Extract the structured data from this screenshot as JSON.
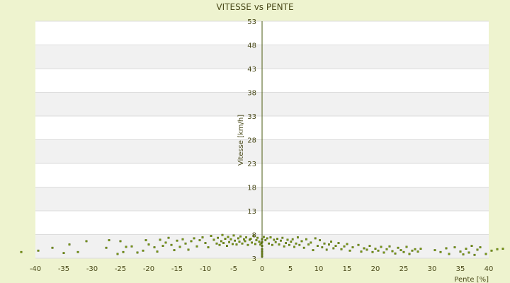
{
  "chart_data": {
    "type": "scatter",
    "title": "VITESSE vs PENTE",
    "xlabel": "Pente [%]",
    "ylabel": "Vitesse [km/h]",
    "xlim": [
      -40,
      40
    ],
    "ylim": [
      3,
      53
    ],
    "x_ticks": [
      -40,
      -35,
      -30,
      -25,
      -20,
      -15,
      -10,
      -5,
      0,
      5,
      10,
      15,
      20,
      25,
      30,
      35,
      40
    ],
    "y_ticks": [
      3,
      8,
      13,
      18,
      23,
      28,
      33,
      38,
      43,
      48,
      53
    ],
    "grid": true,
    "legend": "none",
    "colors": {
      "background": "#eef3cf",
      "plot": "#ffffff",
      "band": "#f1f1f1",
      "marker": "#7a9a10",
      "marker_edge": "#3d5200",
      "axis": "#4a5a10"
    },
    "points": [
      [
        -42.5,
        4.3
      ],
      [
        -39.5,
        4.6
      ],
      [
        -37,
        5.2
      ],
      [
        -35,
        4.1
      ],
      [
        -34,
        5.9
      ],
      [
        -32.5,
        4.3
      ],
      [
        -31,
        6.6
      ],
      [
        -27.5,
        5.2
      ],
      [
        -27,
        6.8
      ],
      [
        -25.5,
        3.9
      ],
      [
        -25,
        6.6
      ],
      [
        -24.5,
        4.3
      ],
      [
        -24,
        5.4
      ],
      [
        -23,
        5.5
      ],
      [
        -22,
        4.2
      ],
      [
        -21,
        4.6
      ],
      [
        -20.5,
        6.8
      ],
      [
        -20,
        5.9
      ],
      [
        -19,
        5.3
      ],
      [
        -18.5,
        4.4
      ],
      [
        -18,
        6.9
      ],
      [
        -17.5,
        5.6
      ],
      [
        -17,
        6.3
      ],
      [
        -16.5,
        7.3
      ],
      [
        -16,
        5.8
      ],
      [
        -15.5,
        4.7
      ],
      [
        -15,
        6.7
      ],
      [
        -14.5,
        5.4
      ],
      [
        -14,
        7.0
      ],
      [
        -13.5,
        6.1
      ],
      [
        -13,
        4.8
      ],
      [
        -12.5,
        6.6
      ],
      [
        -12,
        7.2
      ],
      [
        -11.5,
        5.5
      ],
      [
        -11,
        6.8
      ],
      [
        -10.5,
        7.4
      ],
      [
        -10,
        6.2
      ],
      [
        -9.5,
        5.3
      ],
      [
        -9,
        7.7
      ],
      [
        -8.5,
        6.9
      ],
      [
        -8,
        6.1
      ],
      [
        -7.8,
        7.3
      ],
      [
        -7.5,
        5.8
      ],
      [
        -7.2,
        6.6
      ],
      [
        -7,
        7.9
      ],
      [
        -6.8,
        6.2
      ],
      [
        -6.5,
        7.1
      ],
      [
        -6.2,
        5.6
      ],
      [
        -6,
        7.5
      ],
      [
        -5.8,
        6.4
      ],
      [
        -5.5,
        7.0
      ],
      [
        -5.2,
        6.0
      ],
      [
        -5,
        7.8
      ],
      [
        -4.8,
        6.7
      ],
      [
        -4.5,
        5.9
      ],
      [
        -4.2,
        7.2
      ],
      [
        -4,
        6.5
      ],
      [
        -3.8,
        7.6
      ],
      [
        -3.5,
        6.1
      ],
      [
        -3.2,
        7.0
      ],
      [
        -3,
        6.6
      ],
      [
        -2.8,
        7.4
      ],
      [
        -2.5,
        5.8
      ],
      [
        -2.2,
        6.9
      ],
      [
        -2,
        7.1
      ],
      [
        -1.8,
        6.3
      ],
      [
        -1.5,
        7.7
      ],
      [
        -1.2,
        6.0
      ],
      [
        -1,
        6.8
      ],
      [
        -0.8,
        7.3
      ],
      [
        -0.5,
        6.5
      ],
      [
        -0.3,
        5.9
      ],
      [
        -0.1,
        6.2
      ],
      [
        0,
        7.0
      ],
      [
        0,
        6.4
      ],
      [
        0,
        5.6
      ],
      [
        0,
        4.9
      ],
      [
        0,
        4.4
      ],
      [
        0,
        3.9
      ],
      [
        0,
        3.4
      ],
      [
        0.3,
        7.5
      ],
      [
        0.6,
        6.8
      ],
      [
        0.9,
        7.2
      ],
      [
        1.2,
        6.1
      ],
      [
        1.5,
        7.4
      ],
      [
        1.8,
        5.8
      ],
      [
        2.1,
        6.9
      ],
      [
        2.4,
        6.4
      ],
      [
        2.7,
        7.1
      ],
      [
        3,
        5.9
      ],
      [
        3.3,
        6.7
      ],
      [
        3.6,
        7.3
      ],
      [
        3.9,
        5.5
      ],
      [
        4.2,
        6.2
      ],
      [
        4.5,
        6.9
      ],
      [
        4.8,
        5.8
      ],
      [
        5.1,
        6.5
      ],
      [
        5.4,
        7.0
      ],
      [
        5.7,
        5.4
      ],
      [
        6,
        6.1
      ],
      [
        6.3,
        7.4
      ],
      [
        6.6,
        5.8
      ],
      [
        7,
        6.6
      ],
      [
        7.4,
        5.2
      ],
      [
        7.8,
        7.0
      ],
      [
        8.2,
        5.9
      ],
      [
        8.6,
        6.3
      ],
      [
        9,
        4.7
      ],
      [
        9.4,
        7.2
      ],
      [
        9.8,
        5.6
      ],
      [
        10.2,
        6.8
      ],
      [
        10.6,
        5.3
      ],
      [
        11,
        6.1
      ],
      [
        11.4,
        4.8
      ],
      [
        11.8,
        5.9
      ],
      [
        12.2,
        6.5
      ],
      [
        12.6,
        5.1
      ],
      [
        13,
        5.6
      ],
      [
        13.5,
        6.2
      ],
      [
        14,
        4.9
      ],
      [
        14.5,
        5.5
      ],
      [
        15,
        6.0
      ],
      [
        15.5,
        4.6
      ],
      [
        16,
        5.3
      ],
      [
        17,
        5.8
      ],
      [
        17.5,
        4.4
      ],
      [
        18,
        5.1
      ],
      [
        18.5,
        4.8
      ],
      [
        19,
        5.6
      ],
      [
        19.5,
        4.3
      ],
      [
        20,
        5.0
      ],
      [
        20.5,
        4.6
      ],
      [
        21,
        5.4
      ],
      [
        21.5,
        4.2
      ],
      [
        22,
        4.9
      ],
      [
        22.5,
        5.5
      ],
      [
        23,
        4.5
      ],
      [
        23.5,
        4.0
      ],
      [
        24,
        5.2
      ],
      [
        24.5,
        4.7
      ],
      [
        25,
        4.3
      ],
      [
        25.5,
        5.4
      ],
      [
        26,
        3.9
      ],
      [
        26.5,
        4.6
      ],
      [
        27,
        4.9
      ],
      [
        27.5,
        4.4
      ],
      [
        28,
        5.0
      ],
      [
        30.5,
        4.7
      ],
      [
        31.5,
        4.3
      ],
      [
        32.5,
        5.1
      ],
      [
        33,
        3.9
      ],
      [
        34,
        5.3
      ],
      [
        35,
        4.4
      ],
      [
        35.5,
        3.8
      ],
      [
        36,
        5.0
      ],
      [
        36.5,
        4.2
      ],
      [
        37,
        5.6
      ],
      [
        37.5,
        3.7
      ],
      [
        38,
        4.8
      ],
      [
        38.5,
        5.3
      ],
      [
        39.5,
        3.9
      ],
      [
        40.5,
        4.6
      ],
      [
        41.5,
        4.9
      ],
      [
        42.5,
        5.0
      ]
    ]
  }
}
